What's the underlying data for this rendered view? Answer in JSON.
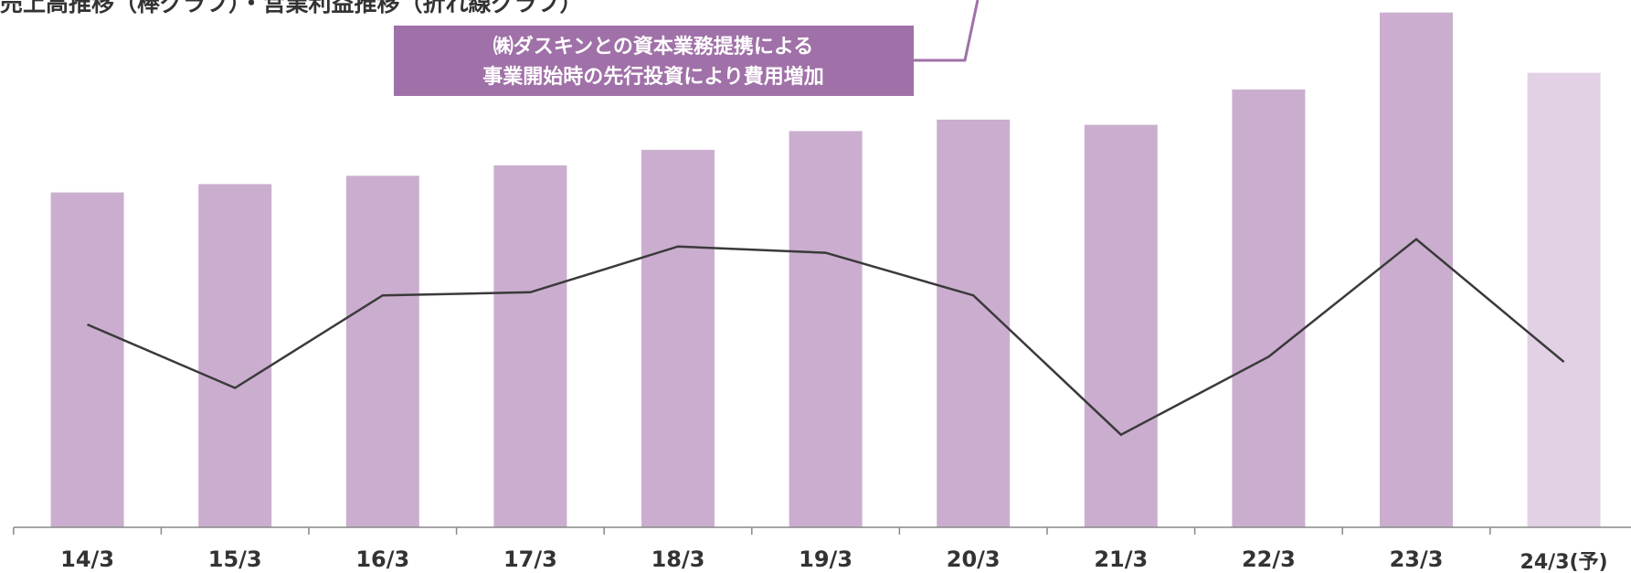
{
  "chart_data": {
    "type": "bar_line",
    "title": "売上高推移（棒グラフ）・営業利益推移（折れ線グラフ）",
    "annotation": [
      "㈱ダスキンとの資本業務提携による",
      "事業開始時の先行投資により費用増加"
    ],
    "categories": [
      "14/3",
      "15/3",
      "16/3",
      "17/3",
      "18/3",
      "19/3",
      "20/3",
      "21/3",
      "22/3",
      "23/3",
      "24/3(予)"
    ],
    "series": [
      {
        "name": "売上高",
        "type": "bar",
        "color": "#cbaecf",
        "colors": [
          "#cbaecf",
          "#cbaecf",
          "#cbaecf",
          "#cbaecf",
          "#cbaecf",
          "#cbaecf",
          "#cbaecf",
          "#cbaecf",
          "#cbaecf",
          "#cbaecf",
          "#e2d0e4"
        ],
        "values": [
          322,
          330,
          338,
          348,
          363,
          381,
          392,
          387,
          421,
          495,
          437
        ]
      },
      {
        "name": "営業利益",
        "type": "line",
        "color": "#3a3a3a",
        "values": [
          195,
          134,
          223,
          226,
          270,
          264,
          223,
          89,
          164,
          277,
          159
        ]
      }
    ],
    "ylim": [
      0,
      500
    ]
  }
}
